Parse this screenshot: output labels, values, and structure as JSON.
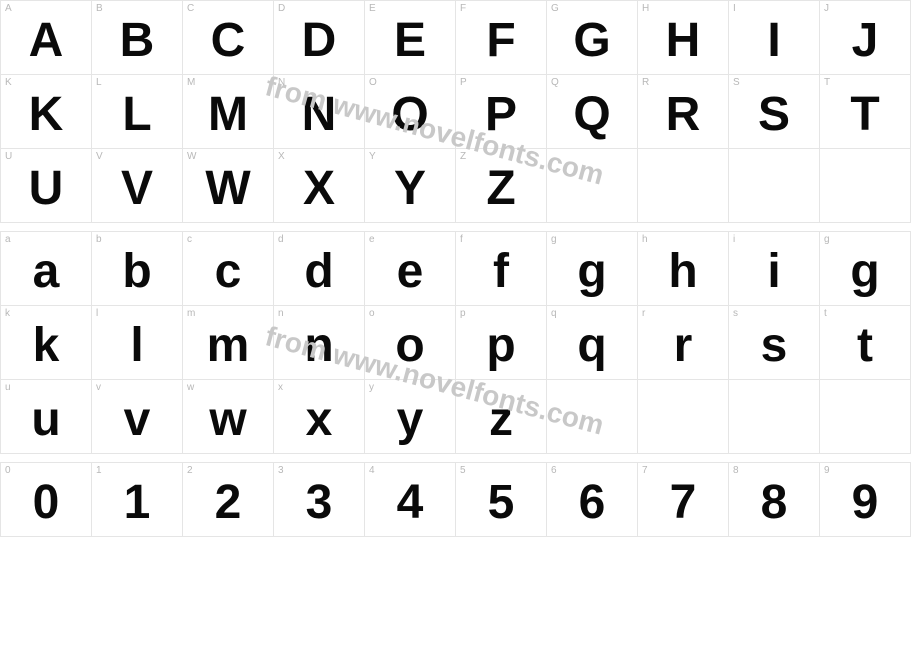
{
  "grid": {
    "cell_size": 74,
    "columns": 10,
    "border_color": "#e5e5e5",
    "label_color": "#b8b8b8",
    "label_fontsize": 10,
    "glyph_color": "#0a0a0a",
    "glyph_fontsize": 48,
    "glyph_weight": 900,
    "background_color": "#ffffff"
  },
  "watermark": {
    "text": "from www.novelfonts.com",
    "color": "#c8c8c8",
    "fontsize": 28,
    "rotation_deg": 15
  },
  "uppercase": {
    "rows": [
      [
        {
          "label": "A",
          "glyph": "A"
        },
        {
          "label": "B",
          "glyph": "B"
        },
        {
          "label": "C",
          "glyph": "C"
        },
        {
          "label": "D",
          "glyph": "D"
        },
        {
          "label": "E",
          "glyph": "E"
        },
        {
          "label": "F",
          "glyph": "F"
        },
        {
          "label": "G",
          "glyph": "G"
        },
        {
          "label": "H",
          "glyph": "H"
        },
        {
          "label": "I",
          "glyph": "I"
        },
        {
          "label": "J",
          "glyph": "J"
        }
      ],
      [
        {
          "label": "K",
          "glyph": "K"
        },
        {
          "label": "L",
          "glyph": "L"
        },
        {
          "label": "M",
          "glyph": "M"
        },
        {
          "label": "N",
          "glyph": "N"
        },
        {
          "label": "O",
          "glyph": "O"
        },
        {
          "label": "P",
          "glyph": "P"
        },
        {
          "label": "Q",
          "glyph": "Q"
        },
        {
          "label": "R",
          "glyph": "R"
        },
        {
          "label": "S",
          "glyph": "S"
        },
        {
          "label": "T",
          "glyph": "T"
        }
      ],
      [
        {
          "label": "U",
          "glyph": "U"
        },
        {
          "label": "V",
          "glyph": "V"
        },
        {
          "label": "W",
          "glyph": "W"
        },
        {
          "label": "X",
          "glyph": "X"
        },
        {
          "label": "Y",
          "glyph": "Y"
        },
        {
          "label": "Z",
          "glyph": "Z"
        },
        {
          "label": "",
          "glyph": ""
        },
        {
          "label": "",
          "glyph": ""
        },
        {
          "label": "",
          "glyph": ""
        },
        {
          "label": "",
          "glyph": ""
        }
      ]
    ]
  },
  "lowercase": {
    "rows": [
      [
        {
          "label": "a",
          "glyph": "a"
        },
        {
          "label": "b",
          "glyph": "b"
        },
        {
          "label": "c",
          "glyph": "c"
        },
        {
          "label": "d",
          "glyph": "d"
        },
        {
          "label": "e",
          "glyph": "e"
        },
        {
          "label": "f",
          "glyph": "f"
        },
        {
          "label": "g",
          "glyph": "g"
        },
        {
          "label": "h",
          "glyph": "h"
        },
        {
          "label": "i",
          "glyph": "i"
        },
        {
          "label": "g",
          "glyph": "g"
        }
      ],
      [
        {
          "label": "k",
          "glyph": "k"
        },
        {
          "label": "l",
          "glyph": "l"
        },
        {
          "label": "m",
          "glyph": "m"
        },
        {
          "label": "n",
          "glyph": "n"
        },
        {
          "label": "o",
          "glyph": "o"
        },
        {
          "label": "p",
          "glyph": "p"
        },
        {
          "label": "q",
          "glyph": "q"
        },
        {
          "label": "r",
          "glyph": "r"
        },
        {
          "label": "s",
          "glyph": "s"
        },
        {
          "label": "t",
          "glyph": "t"
        }
      ],
      [
        {
          "label": "u",
          "glyph": "u"
        },
        {
          "label": "v",
          "glyph": "v"
        },
        {
          "label": "w",
          "glyph": "w"
        },
        {
          "label": "x",
          "glyph": "x"
        },
        {
          "label": "y",
          "glyph": "y"
        },
        {
          "label": "z",
          "glyph": "z"
        },
        {
          "label": "",
          "glyph": ""
        },
        {
          "label": "",
          "glyph": ""
        },
        {
          "label": "",
          "glyph": ""
        },
        {
          "label": "",
          "glyph": ""
        }
      ]
    ]
  },
  "numbers": {
    "rows": [
      [
        {
          "label": "0",
          "glyph": "0"
        },
        {
          "label": "1",
          "glyph": "1"
        },
        {
          "label": "2",
          "glyph": "2"
        },
        {
          "label": "3",
          "glyph": "3"
        },
        {
          "label": "4",
          "glyph": "4"
        },
        {
          "label": "5",
          "glyph": "5"
        },
        {
          "label": "6",
          "glyph": "6"
        },
        {
          "label": "7",
          "glyph": "7"
        },
        {
          "label": "8",
          "glyph": "8"
        },
        {
          "label": "9",
          "glyph": "9"
        }
      ]
    ]
  }
}
